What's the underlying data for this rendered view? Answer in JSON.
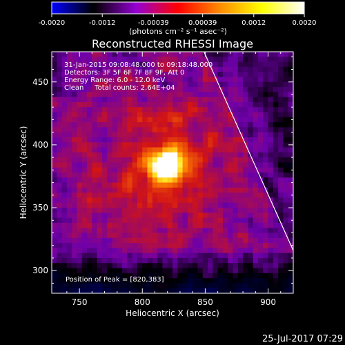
{
  "chart_data": {
    "type": "heatmap",
    "title": "Reconstructed RHESSI Image",
    "xlabel": "Heliocentric X (arcsec)",
    "ylabel": "Heliocentric Y (arcsec)",
    "xlim": [
      728,
      920
    ],
    "ylim": [
      282,
      474
    ],
    "x_ticks": [
      750,
      800,
      850,
      900
    ],
    "y_ticks": [
      300,
      350,
      400,
      450
    ],
    "colorbar": {
      "range": [
        -0.002,
        0.002
      ],
      "tick_labels": [
        "-0.0020",
        "-0.0012",
        "-0.00039",
        "0.00039",
        "0.0012",
        "0.0020"
      ],
      "tick_values": [
        -0.002,
        -0.0012,
        -0.00039,
        0.00039,
        0.0012,
        0.002
      ],
      "units_label": "(photons cm⁻² s⁻¹ asec⁻²)",
      "colors": [
        "#0000ff",
        "#000000",
        "#9400d3",
        "#ff0000",
        "#ff8c00",
        "#ffff00",
        "#ffffff"
      ]
    },
    "peak": {
      "x": 820,
      "y": 383
    },
    "limb_line": [
      [
        849,
        474
      ],
      [
        920,
        316
      ]
    ],
    "annotations": [
      "31-Jan-2015 09:08:48.000 to 09:18:48.000",
      "Detectors: 3F 5F 6F 7F 8F 9F, Att 0",
      "Energy Range: 6.0 - 12.0 keV",
      "Clean     Total counts: 2.64E+04"
    ],
    "peak_label": "Position of Peak = [820,383]",
    "footer": "25-Jul-2017 07:29"
  }
}
